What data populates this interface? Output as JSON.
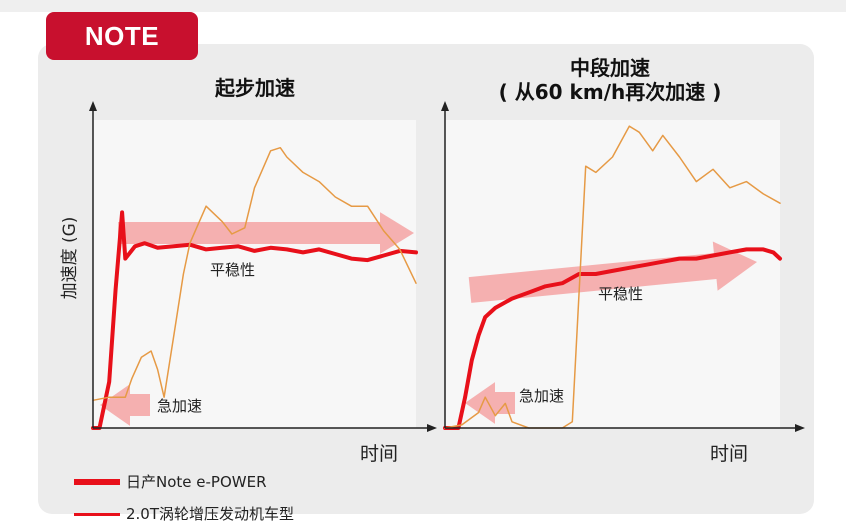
{
  "badge": "NOTE",
  "ylabel": "加速度 (G)",
  "xlabel": "时间",
  "colors": {
    "badge": "#c8102e",
    "epower": "#e8101a",
    "turbo": "#e69a45",
    "arrow": "#f4a3a3",
    "plot_bg": "#f7f7f7"
  },
  "legend": [
    {
      "label": "日产Note e-POWER",
      "line": "thick"
    },
    {
      "label": "2.0T涡轮增压发动机车型",
      "line": "thin"
    }
  ],
  "chart_data": [
    {
      "type": "line",
      "title": "起步加速",
      "xlabel": "时间",
      "ylabel": "加速度 (G)",
      "ylim": [
        0,
        1
      ],
      "xlim": [
        0,
        1
      ],
      "grid": false,
      "annotations": [
        {
          "text": "平稳性",
          "kind": "flat-arrow-right"
        },
        {
          "text": "急加速",
          "kind": "arrow-left"
        }
      ],
      "series": [
        {
          "name": "日产Note e-POWER",
          "style": "thick",
          "x": [
            0,
            0.02,
            0.05,
            0.07,
            0.09,
            0.1,
            0.13,
            0.16,
            0.2,
            0.25,
            0.3,
            0.35,
            0.4,
            0.45,
            0.5,
            0.55,
            0.6,
            0.65,
            0.7,
            0.75,
            0.8,
            0.85,
            0.9,
            0.95,
            1.0
          ],
          "y": [
            0,
            0.0,
            0.15,
            0.45,
            0.7,
            0.55,
            0.59,
            0.6,
            0.585,
            0.59,
            0.595,
            0.58,
            0.585,
            0.59,
            0.575,
            0.585,
            0.58,
            0.57,
            0.58,
            0.565,
            0.55,
            0.545,
            0.56,
            0.575,
            0.57
          ]
        },
        {
          "name": "2.0T涡轮增压发动机车型",
          "style": "thin",
          "x": [
            0,
            0.05,
            0.1,
            0.12,
            0.15,
            0.18,
            0.2,
            0.22,
            0.25,
            0.28,
            0.3,
            0.35,
            0.4,
            0.43,
            0.47,
            0.5,
            0.55,
            0.58,
            0.6,
            0.65,
            0.7,
            0.75,
            0.8,
            0.85,
            0.9,
            0.95,
            1.0
          ],
          "y": [
            0.09,
            0.1,
            0.1,
            0.16,
            0.23,
            0.25,
            0.19,
            0.1,
            0.3,
            0.5,
            0.6,
            0.72,
            0.67,
            0.63,
            0.65,
            0.78,
            0.9,
            0.91,
            0.88,
            0.83,
            0.8,
            0.75,
            0.72,
            0.72,
            0.64,
            0.58,
            0.47
          ]
        }
      ]
    },
    {
      "type": "line",
      "title": "中段加速\n( 从60 km/h再次加速 )",
      "xlabel": "时间",
      "ylim": [
        0,
        1
      ],
      "xlim": [
        0,
        1
      ],
      "grid": false,
      "annotations": [
        {
          "text": "平稳性",
          "kind": "rising-arrow-right"
        },
        {
          "text": "急加速",
          "kind": "arrow-left"
        }
      ],
      "series": [
        {
          "name": "日产Note e-POWER",
          "style": "thick",
          "x": [
            0,
            0.04,
            0.06,
            0.08,
            0.1,
            0.12,
            0.15,
            0.2,
            0.25,
            0.3,
            0.35,
            0.4,
            0.45,
            0.5,
            0.55,
            0.6,
            0.65,
            0.7,
            0.75,
            0.8,
            0.85,
            0.9,
            0.95,
            0.98,
            1.0
          ],
          "y": [
            0,
            0.0,
            0.1,
            0.22,
            0.3,
            0.36,
            0.39,
            0.42,
            0.44,
            0.46,
            0.47,
            0.5,
            0.5,
            0.51,
            0.52,
            0.53,
            0.54,
            0.55,
            0.55,
            0.56,
            0.57,
            0.58,
            0.58,
            0.57,
            0.55
          ]
        },
        {
          "name": "2.0T涡轮增压发动机车型",
          "style": "thin",
          "x": [
            0,
            0.05,
            0.1,
            0.12,
            0.15,
            0.18,
            0.2,
            0.25,
            0.3,
            0.35,
            0.38,
            0.42,
            0.45,
            0.5,
            0.55,
            0.58,
            0.62,
            0.65,
            0.7,
            0.75,
            0.8,
            0.85,
            0.9,
            0.95,
            1.0
          ],
          "y": [
            0,
            0.01,
            0.05,
            0.1,
            0.04,
            0.08,
            0.02,
            0.0,
            0.0,
            0.0,
            0.02,
            0.85,
            0.83,
            0.88,
            0.98,
            0.96,
            0.9,
            0.95,
            0.88,
            0.8,
            0.84,
            0.78,
            0.8,
            0.76,
            0.73
          ]
        }
      ]
    }
  ]
}
